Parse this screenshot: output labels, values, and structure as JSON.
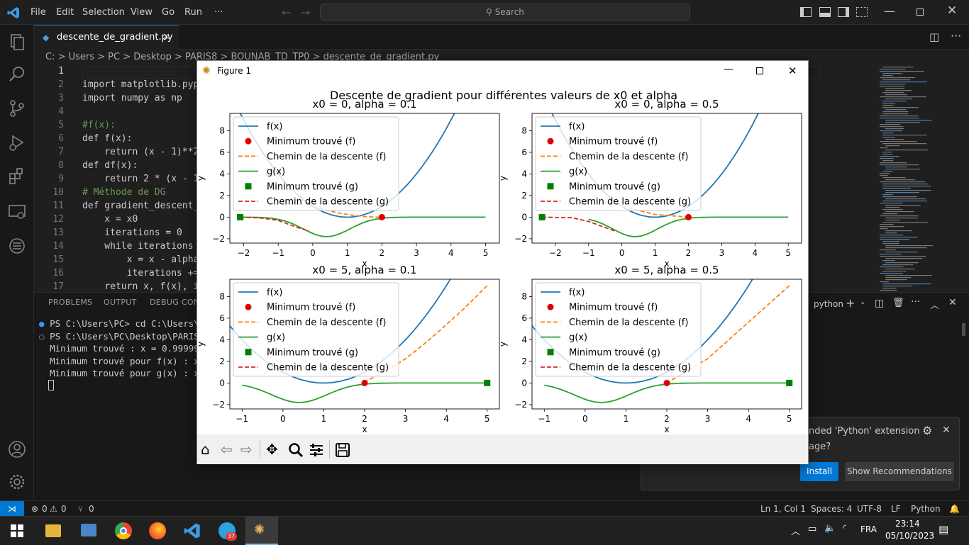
{
  "titlebar": {
    "menus": [
      "File",
      "Edit",
      "Selection",
      "View",
      "Go",
      "Run",
      "···"
    ],
    "search_placeholder": "Search"
  },
  "editor": {
    "tab_label": "descente_de_gradient.py",
    "breadcrumb": "C: > Users > PC > Desktop > PARIS8 > BOUNAB_TD_TP0 > descente_de_gradient.py",
    "lines": [
      {
        "n": "1",
        "t": ""
      },
      {
        "n": "2",
        "t": "import matplotlib.pyp"
      },
      {
        "n": "3",
        "t": "import numpy as np"
      },
      {
        "n": "4",
        "t": ""
      },
      {
        "n": "5",
        "t": "#f(x):"
      },
      {
        "n": "6",
        "t": "def f(x):"
      },
      {
        "n": "7",
        "t": "    return (x - 1)**2"
      },
      {
        "n": "8",
        "t": "def df(x):"
      },
      {
        "n": "9",
        "t": "    return 2 * (x - 1"
      },
      {
        "n": "10",
        "t": "# Méthode de DG"
      },
      {
        "n": "11",
        "t": "def gradient_descent_"
      },
      {
        "n": "12",
        "t": "    x = x0"
      },
      {
        "n": "13",
        "t": "    iterations = 0"
      },
      {
        "n": "14",
        "t": "    while iterations"
      },
      {
        "n": "15",
        "t": "        x = x - alpha"
      },
      {
        "n": "16",
        "t": "        iterations +="
      },
      {
        "n": "17",
        "t": "    return x, f(x), i"
      }
    ]
  },
  "panel": {
    "tabs": [
      "PROBLEMS",
      "OUTPUT",
      "DEBUG CONS"
    ],
    "terminal_name": "python",
    "terminal_lines": [
      "PS C:\\Users\\PC> cd C:\\Users\\PC",
      "PS C:\\Users\\PC\\Desktop\\PARIS8\\",
      "Minimum trouvé : x = 0.9999956",
      "Minimum trouvé pour f(x) : x =",
      "Minimum trouvé pour g(x) : x ="
    ]
  },
  "notification": {
    "text1": "nded 'Python' extension",
    "text2": "age?",
    "install": "Install",
    "show_rec": "Show Recommendations"
  },
  "statusbar": {
    "errors": "0",
    "warnings": "0",
    "ports": "0",
    "position": "Ln 1, Col 1",
    "spaces": "Spaces: 4",
    "encoding": "UTF-8",
    "eol": "LF",
    "language": "Python"
  },
  "taskbar": {
    "lang": "FRA",
    "time": "23:14",
    "date": "05/10/2023",
    "telegram_badge": "37"
  },
  "figure": {
    "window_title": "Figure 1",
    "suptitle": "Descente de gradient pour différentes valeurs de x0 et alpha",
    "xlabel": "x",
    "ylabel": "y",
    "legend": [
      "f(x)",
      "Minimum trouvé (f)",
      "Chemin de la descente (f)",
      "g(x)",
      "Minimum trouvé (g)",
      "Chemin de la descente (g)"
    ],
    "colors": {
      "f": "#1f77b4",
      "path_f": "#ff7f0e",
      "g": "#2ca02c",
      "min_f": "#e00000",
      "min_g": "#008000",
      "path_g": "#d62728"
    }
  },
  "chart_data": [
    {
      "type": "line",
      "title": "x0 = 0, alpha = 0.1",
      "x0": 0,
      "alpha": 0.1,
      "xlim": [
        -2.4,
        5.4
      ],
      "ylim": [
        -2.4,
        9.6
      ],
      "xticks": [
        -2,
        -1,
        0,
        1,
        2,
        3,
        4,
        5
      ],
      "yticks": [
        -2,
        0,
        2,
        4,
        6,
        8
      ],
      "f_range": [
        -2.1,
        5
      ],
      "g_range": [
        -2.1,
        5
      ],
      "min_f": [
        2,
        0
      ],
      "min_g": [
        -2.1,
        0
      ],
      "path_f": [
        [
          0,
          1
        ],
        [
          0.4,
          0.64
        ],
        [
          0.72,
          0.41
        ],
        [
          0.98,
          0.26
        ],
        [
          1.18,
          0.17
        ],
        [
          1.5,
          0.05
        ],
        [
          1.8,
          0.01
        ],
        [
          2,
          0
        ]
      ],
      "path_g": [
        [
          -2.1,
          0
        ],
        [
          -1.5,
          -0.08
        ],
        [
          -1,
          -0.3
        ],
        [
          -0.5,
          -0.9
        ],
        [
          -0.1,
          -1.3
        ]
      ]
    },
    {
      "type": "line",
      "title": "x0 = 0, alpha = 0.5",
      "x0": 0,
      "alpha": 0.5,
      "xlim": [
        -2.7,
        5.4
      ],
      "ylim": [
        -2.4,
        9.6
      ],
      "xticks": [
        -2,
        -1,
        0,
        1,
        2,
        3,
        4,
        5
      ],
      "yticks": [
        -2,
        0,
        2,
        4,
        6,
        8
      ],
      "f_range": [
        -2.1,
        5
      ],
      "g_range": [
        -1,
        5
      ],
      "min_f": [
        2,
        0
      ],
      "min_g": [
        -2.4,
        0
      ],
      "path_f": [
        [
          0,
          1
        ],
        [
          1,
          0.25
        ],
        [
          2,
          0
        ]
      ],
      "path_g": [
        [
          -2.4,
          0
        ],
        [
          -1.5,
          -0.05
        ],
        [
          -1,
          -0.4
        ],
        [
          -0.2,
          -1.3
        ]
      ]
    },
    {
      "type": "line",
      "title": "x0 = 5, alpha = 0.1",
      "x0": 5,
      "alpha": 0.1,
      "xlim": [
        -1.3,
        5.3
      ],
      "ylim": [
        -2.4,
        9.6
      ],
      "xticks": [
        -1,
        0,
        1,
        2,
        3,
        4,
        5
      ],
      "yticks": [
        -2,
        0,
        2,
        4,
        6,
        8
      ],
      "f_range": [
        -1.3,
        5
      ],
      "g_range": [
        -1,
        5
      ],
      "min_f": [
        2,
        0
      ],
      "min_g": [
        5,
        0
      ],
      "path_f": [
        [
          5,
          9
        ],
        [
          4.4,
          6.76
        ],
        [
          3.92,
          5.12
        ],
        [
          3.54,
          3.87
        ],
        [
          3.23,
          2.92
        ],
        [
          2.98,
          2.2
        ],
        [
          2.6,
          1.28
        ],
        [
          2.3,
          0.68
        ],
        [
          2.1,
          0.3
        ],
        [
          2,
          0
        ]
      ],
      "path_g": []
    },
    {
      "type": "line",
      "title": "x0 = 5, alpha = 0.5",
      "x0": 5,
      "alpha": 0.5,
      "xlim": [
        -1.3,
        5.3
      ],
      "ylim": [
        -2.4,
        9.6
      ],
      "xticks": [
        -1,
        0,
        1,
        2,
        3,
        4,
        5
      ],
      "yticks": [
        -2,
        0,
        2,
        4,
        6,
        8
      ],
      "f_range": [
        -1.3,
        5
      ],
      "g_range": [
        -1,
        5
      ],
      "min_f": [
        2,
        0
      ],
      "min_g": [
        5,
        0
      ],
      "path_f": [
        [
          5,
          9
        ],
        [
          3,
          2.25
        ],
        [
          2,
          0
        ]
      ],
      "path_g": []
    }
  ]
}
